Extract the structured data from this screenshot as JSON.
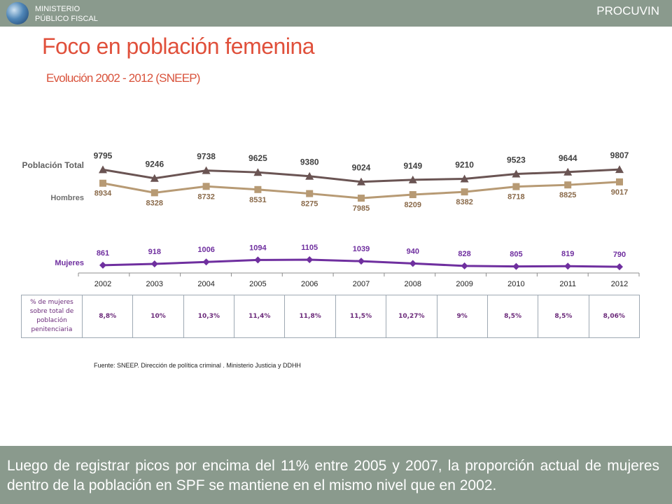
{
  "header": {
    "org_line1": "MINISTERIO",
    "org_line2": "PÚBLICO FISCAL",
    "brand": "PROCUVIN"
  },
  "title": "Foco en población femenina",
  "subtitle": "Evolución 2002 - 2012 (SNEEP)",
  "colors": {
    "bar": "#8a9a8d",
    "title": "#e0503b",
    "total": "#6a5453",
    "hombres": "#b79a74",
    "mujeres": "#6f2f9f"
  },
  "chart_data": {
    "type": "line",
    "categories": [
      "2002",
      "2003",
      "2004",
      "2005",
      "2006",
      "2007",
      "2008",
      "2009",
      "2010",
      "2011",
      "2012"
    ],
    "series": [
      {
        "name": "Población Total",
        "values": [
          9795,
          9246,
          9738,
          9625,
          9380,
          9024,
          9149,
          9210,
          9523,
          9644,
          9807
        ]
      },
      {
        "name": "Hombres",
        "values": [
          8934,
          8328,
          8732,
          8531,
          8275,
          7985,
          8209,
          8382,
          8718,
          8825,
          9017
        ]
      },
      {
        "name": "Mujeres",
        "values": [
          861,
          918,
          1006,
          1094,
          1105,
          1039,
          940,
          828,
          805,
          819,
          790
        ]
      }
    ],
    "table": {
      "row_label": "% de mujeres sobre total de población penitenciaria",
      "values": [
        "8,8%",
        "10%",
        "10,3%",
        "11,4%",
        "11,8%",
        "11,5%",
        "10,27%",
        "9%",
        "8,5%",
        "8,5%",
        "8,06%"
      ]
    }
  },
  "source": "Fuente: SNEEP. Dirección de política criminal . Ministerio Justicia y DDHH",
  "conclusion": "Luego de registrar picos por encima del 11% entre 2005 y 2007, la proporción actual de mujeres dentro de la población en SPF se mantiene en el mismo nivel que en 2002."
}
